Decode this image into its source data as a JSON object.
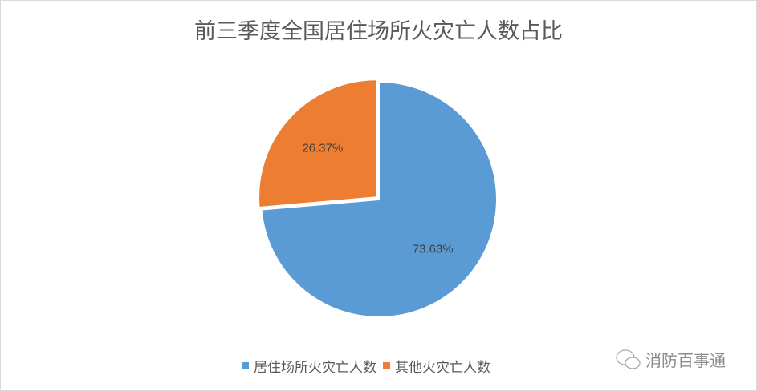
{
  "chart_data": {
    "type": "pie",
    "title": "前三季度全国居住场所火灾亡人数占比",
    "slices": [
      {
        "name": "居住场所火灾亡人数",
        "value": 73.63,
        "label": "73.63%",
        "color": "#5b9bd5"
      },
      {
        "name": "其他火灾亡人数",
        "value": 26.37,
        "label": "26.37%",
        "color": "#ed7d31"
      }
    ],
    "legend": "bottom"
  },
  "watermark": "消防百事通"
}
